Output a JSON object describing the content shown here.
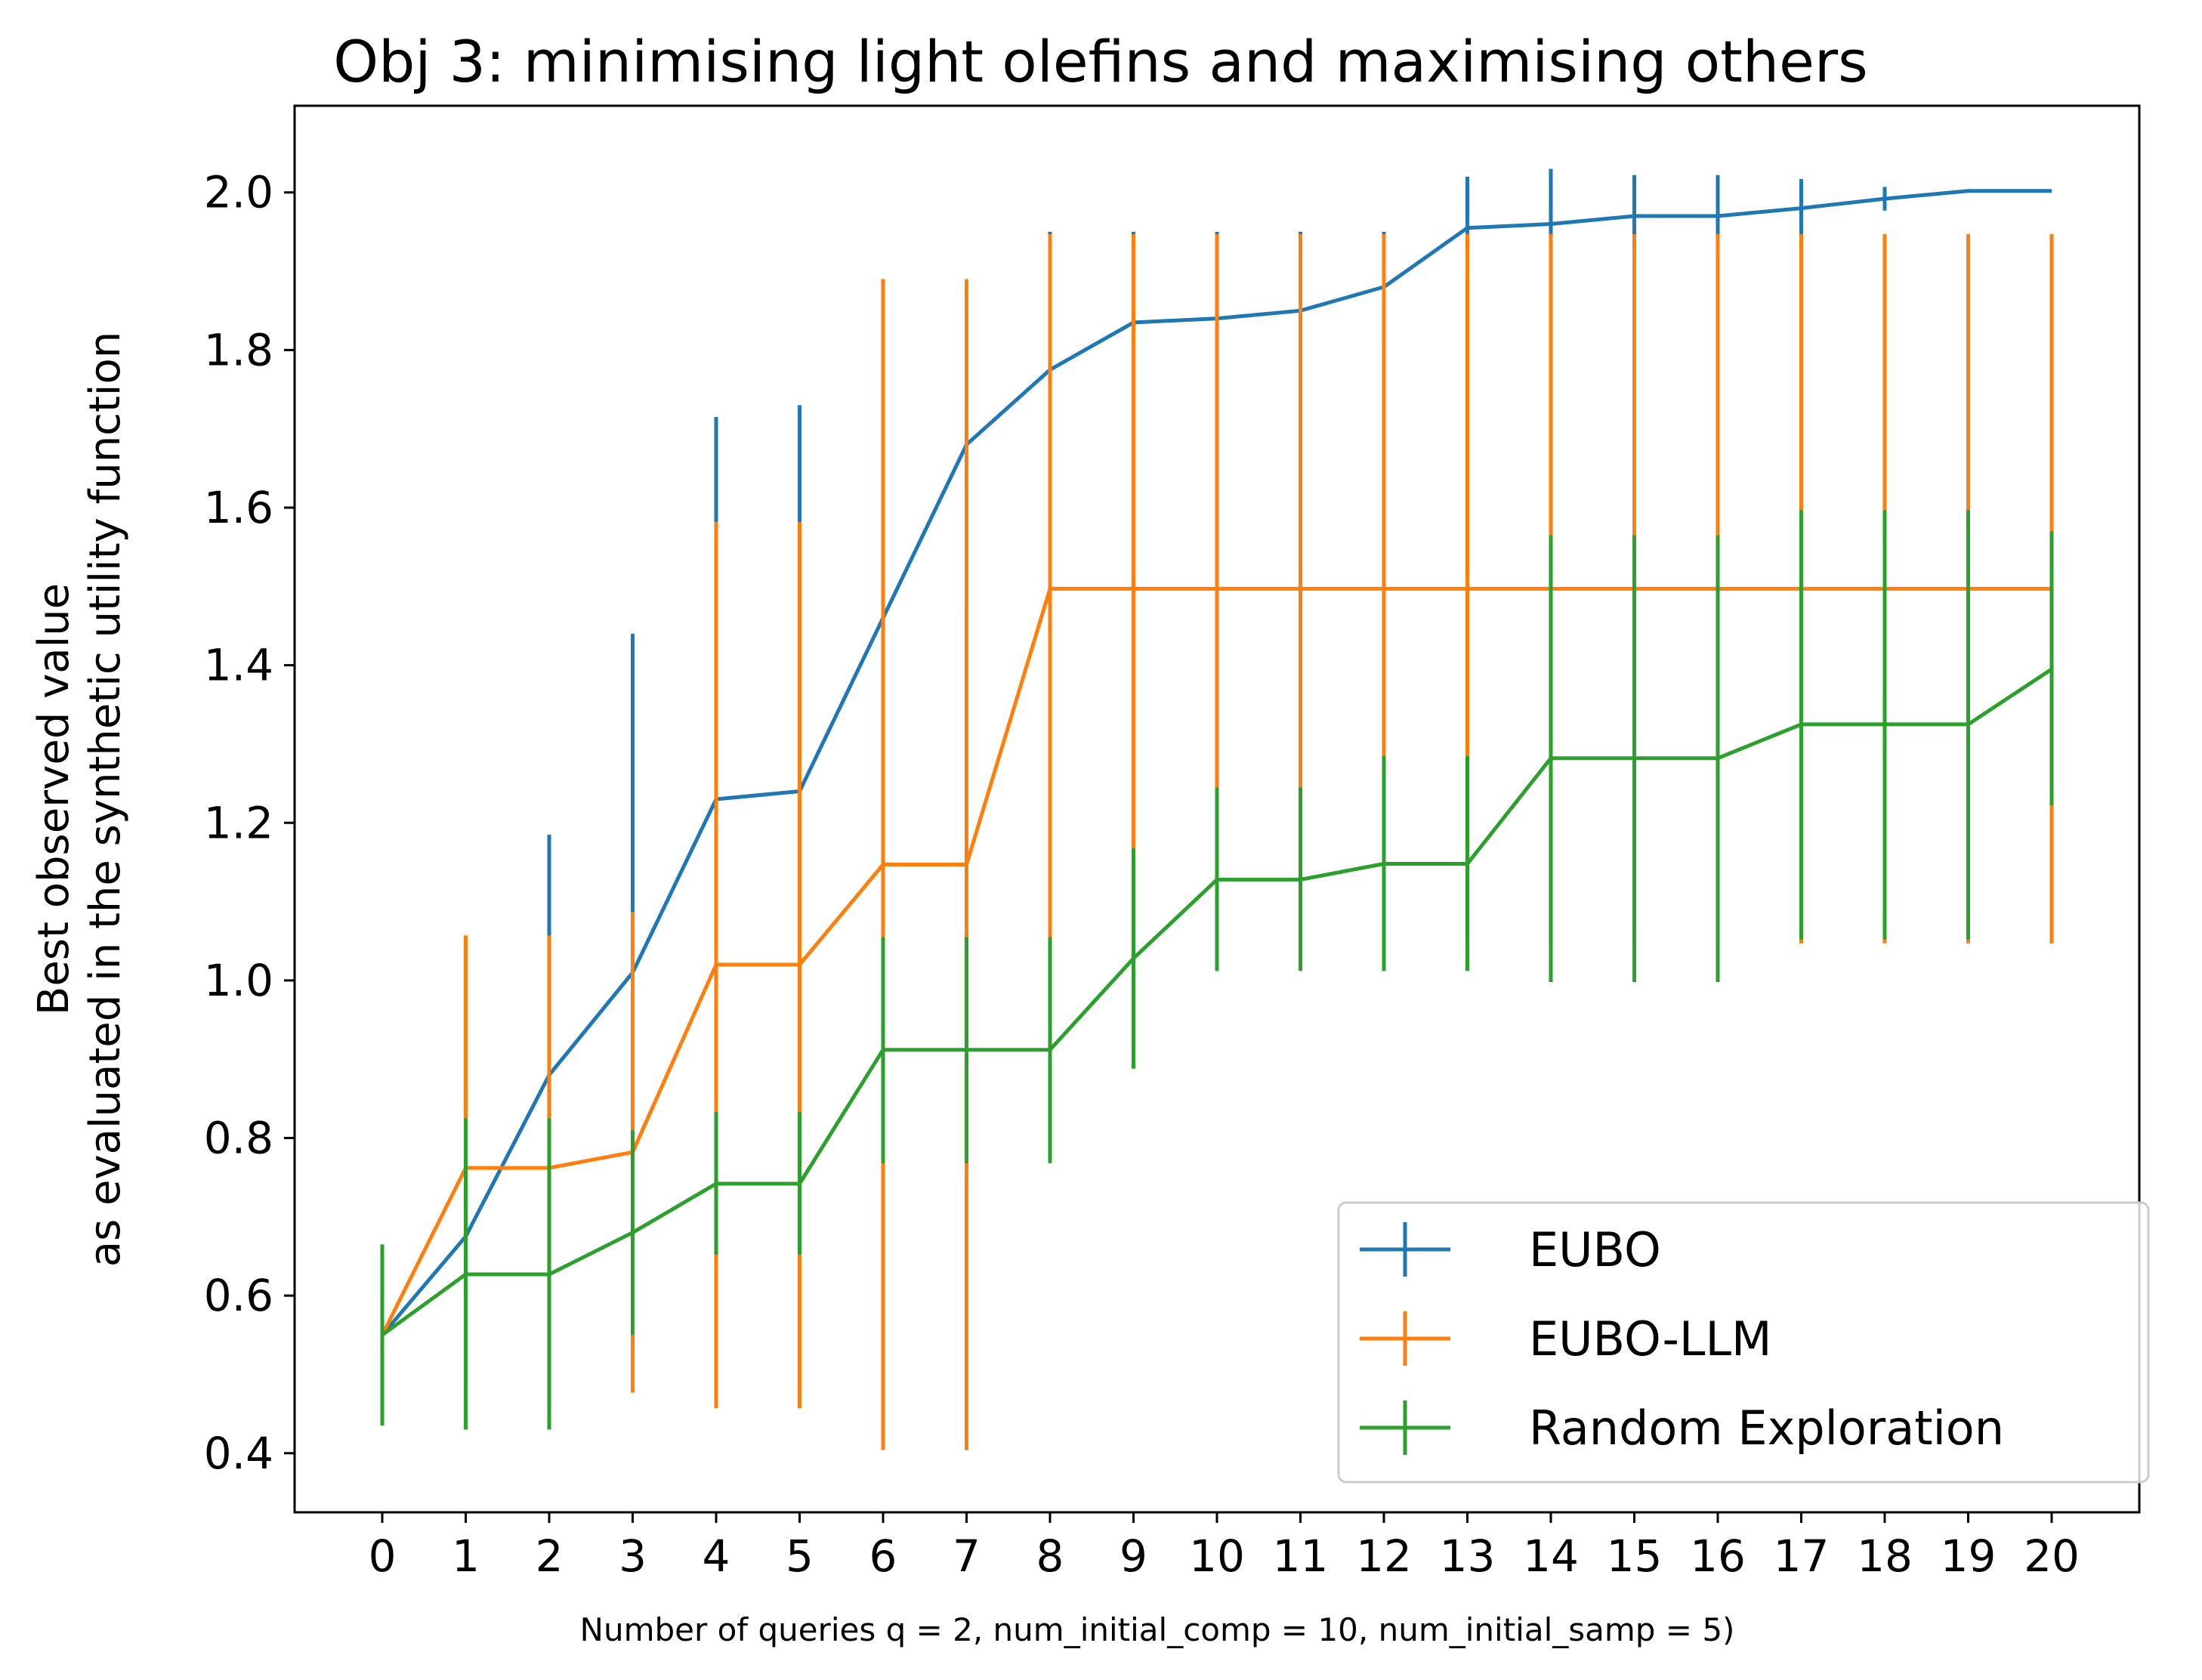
{
  "chart_data": {
    "type": "line",
    "title": "Obj 3: minimising light olefins and maximising others",
    "xlabel": "Number of queries q = 2, num_initial_comp = 10, num_initial_samp = 5)",
    "ylabel_lines": [
      "Best observed value",
      "as evaluated in the synthetic utility function"
    ],
    "x": [
      0,
      1,
      2,
      3,
      4,
      5,
      6,
      7,
      8,
      9,
      10,
      11,
      12,
      13,
      14,
      15,
      16,
      17,
      18,
      19,
      20
    ],
    "x_tick_labels": [
      "0",
      "1",
      "2",
      "3",
      "4",
      "5",
      "6",
      "7",
      "8",
      "9",
      "10",
      "11",
      "12",
      "13",
      "14",
      "15",
      "16",
      "17",
      "18",
      "19",
      "20"
    ],
    "y_ticks": [
      0.4,
      0.6,
      0.8,
      1.0,
      1.2,
      1.4,
      1.6,
      1.8,
      2.0
    ],
    "y_tick_labels": [
      "0.4",
      "0.6",
      "0.8",
      "1.0",
      "1.2",
      "1.4",
      "1.6",
      "1.8",
      "2.0"
    ],
    "xlim": [
      -1.05,
      21.05
    ],
    "ylim": [
      0.325,
      2.11
    ],
    "grid": false,
    "legend_position": "lower-right",
    "series": [
      {
        "name": "EUBO",
        "color": "#1f77b4",
        "values": [
          0.55,
          0.675,
          0.88,
          1.01,
          1.23,
          1.24,
          1.46,
          1.68,
          1.775,
          1.835,
          1.84,
          1.85,
          1.88,
          1.955,
          1.96,
          1.97,
          1.97,
          1.98,
          1.992,
          2.002,
          2.002
        ],
        "err_low": [
          0.55,
          0.49,
          0.58,
          0.58,
          0.74,
          0.75,
          1.03,
          1.47,
          1.6,
          1.72,
          1.73,
          1.75,
          1.81,
          1.89,
          1.89,
          1.92,
          1.92,
          1.945,
          1.977,
          2.002,
          2.002
        ],
        "err_high": [
          0.55,
          0.86,
          1.185,
          1.44,
          1.715,
          1.73,
          1.89,
          1.89,
          1.95,
          1.95,
          1.95,
          1.95,
          1.95,
          2.02,
          2.03,
          2.022,
          2.022,
          2.017,
          2.007,
          2.002,
          2.002
        ]
      },
      {
        "name": "EUBO-LLM",
        "color": "#ff7f0e",
        "values": [
          0.55,
          0.762,
          0.762,
          0.782,
          1.02,
          1.02,
          1.147,
          1.147,
          1.497,
          1.497,
          1.497,
          1.497,
          1.497,
          1.497,
          1.497,
          1.497,
          1.497,
          1.497,
          1.497,
          1.497,
          1.497
        ],
        "err_low": [
          0.55,
          0.465,
          0.465,
          0.477,
          0.457,
          0.457,
          0.404,
          0.404,
          1.047,
          1.047,
          1.047,
          1.047,
          1.047,
          1.047,
          1.047,
          1.047,
          1.047,
          1.047,
          1.047,
          1.047,
          1.047
        ],
        "err_high": [
          0.55,
          1.057,
          1.057,
          1.087,
          1.582,
          1.582,
          1.89,
          1.89,
          1.947,
          1.947,
          1.947,
          1.947,
          1.947,
          1.947,
          1.947,
          1.947,
          1.947,
          1.947,
          1.947,
          1.947,
          1.947
        ]
      },
      {
        "name": "Random Exploration",
        "color": "#2ca02c",
        "values": [
          0.55,
          0.627,
          0.627,
          0.68,
          0.742,
          0.742,
          0.912,
          0.912,
          0.912,
          1.028,
          1.128,
          1.128,
          1.148,
          1.148,
          1.282,
          1.282,
          1.282,
          1.325,
          1.325,
          1.325,
          1.395
        ],
        "err_low": [
          0.435,
          0.43,
          0.43,
          0.55,
          0.652,
          0.652,
          0.768,
          0.768,
          0.768,
          0.888,
          1.012,
          1.012,
          1.012,
          1.012,
          0.998,
          0.998,
          0.998,
          1.052,
          1.052,
          1.052,
          1.222
        ],
        "err_high": [
          0.665,
          0.825,
          0.825,
          0.81,
          0.833,
          0.833,
          1.055,
          1.055,
          1.055,
          1.168,
          1.245,
          1.245,
          1.285,
          1.285,
          1.565,
          1.565,
          1.565,
          1.597,
          1.597,
          1.597,
          1.57
        ]
      }
    ]
  }
}
